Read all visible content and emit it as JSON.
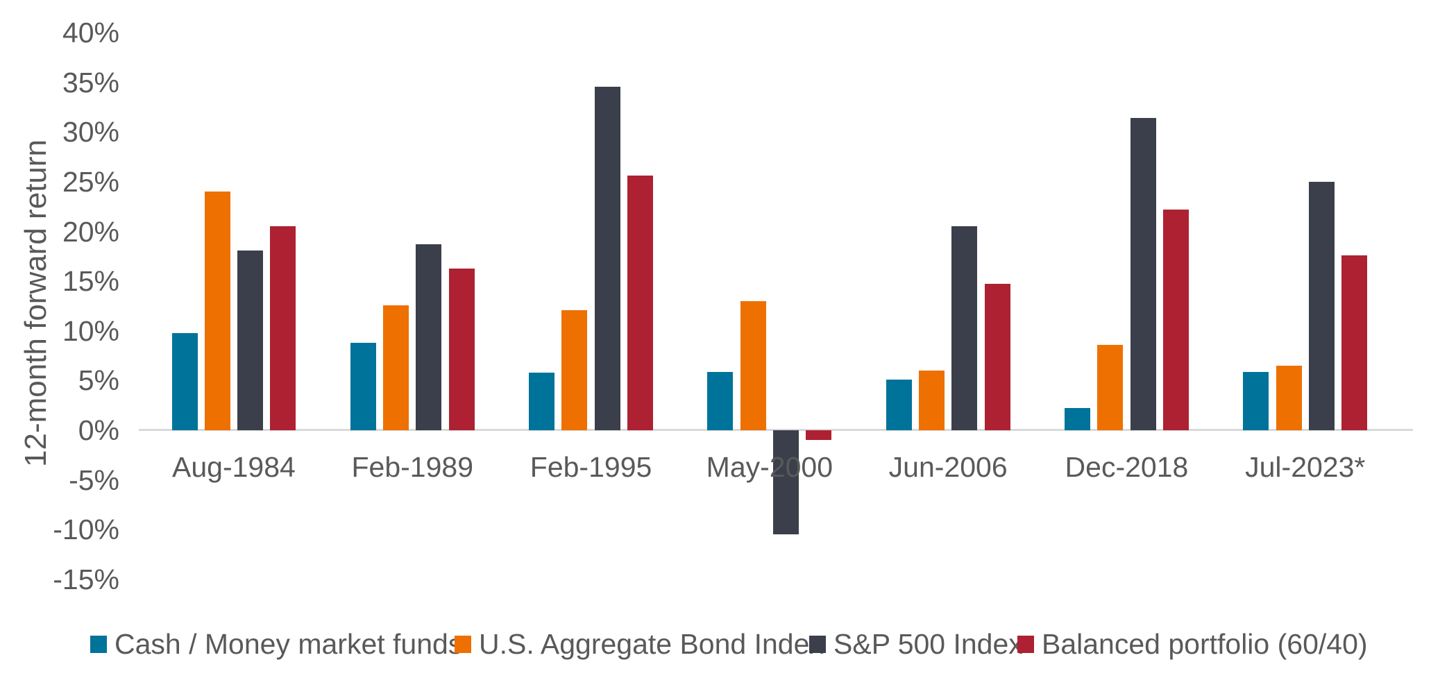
{
  "chart_data": {
    "type": "bar",
    "title": "",
    "ylabel": "12-month forward return",
    "xlabel": "",
    "ylim": [
      -15,
      40
    ],
    "ytick_step": 5,
    "ytick_labels": [
      "40%",
      "35%",
      "30%",
      "25%",
      "20%",
      "15%",
      "10%",
      "5%",
      "0%",
      "-5%",
      "-10%",
      "-15%"
    ],
    "grid": false,
    "legend_position": "bottom",
    "categories": [
      "Aug-1984",
      "Feb-1989",
      "Feb-1995",
      "May-2000",
      "Jun-2006",
      "Dec-2018",
      "Jul-2023*"
    ],
    "series": [
      {
        "name": "Cash / Money market funds",
        "color": "#00739b",
        "values": [
          9.8,
          8.8,
          5.8,
          5.9,
          5.1,
          2.2,
          5.9
        ]
      },
      {
        "name": "U.S. Aggregate Bond Index",
        "color": "#ee7000",
        "values": [
          24.0,
          12.6,
          12.1,
          13.0,
          6.0,
          8.6,
          6.5
        ]
      },
      {
        "name": "S&P 500 Index",
        "color": "#3b3f4b",
        "values": [
          18.1,
          18.7,
          34.6,
          -10.5,
          20.5,
          31.4,
          25.0
        ]
      },
      {
        "name": "Balanced portfolio (60/40)",
        "color": "#ad2132",
        "values": [
          20.5,
          16.3,
          25.6,
          -1.0,
          14.7,
          22.2,
          17.6
        ]
      }
    ],
    "colors": {
      "text": "#595959",
      "axis_line": "#d9d9d9",
      "background": "#ffffff"
    }
  }
}
